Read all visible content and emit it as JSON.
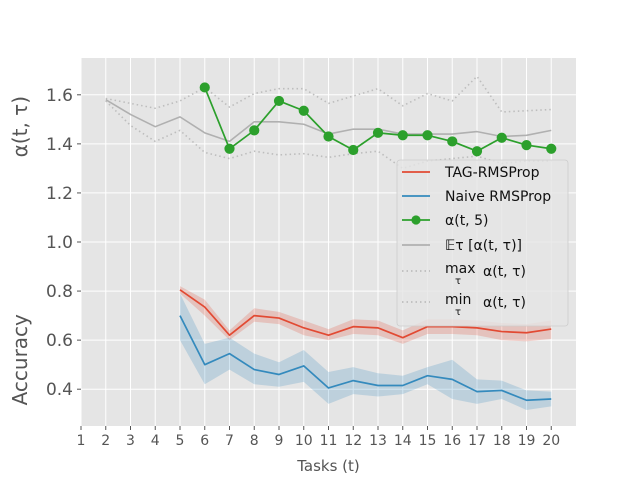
{
  "chart_data": {
    "type": "line",
    "title": "",
    "xlabel": "Tasks (t)",
    "ylabel_top": "α(t, τ)",
    "ylabel_bottom": "Accuracy",
    "xlim": [
      1,
      21
    ],
    "ylim": [
      0.25,
      1.75
    ],
    "x_ticks": [
      1,
      2,
      3,
      4,
      5,
      6,
      7,
      8,
      9,
      10,
      11,
      12,
      13,
      14,
      15,
      16,
      17,
      18,
      19,
      20
    ],
    "y_ticks": [
      0.4,
      0.6,
      0.8,
      1.0,
      1.2,
      1.4,
      1.6
    ],
    "y_tick_labels": [
      "0.4",
      "0.6",
      "0.8",
      "1.0",
      "1.2",
      "1.4",
      "1.6"
    ],
    "grid": true,
    "legend_position": "right",
    "colors": {
      "tag": "#e24a33",
      "naive": "#348abd",
      "alpha5": "#2ca02c",
      "gray": "#b0b0b0",
      "background": "#e5e5e5",
      "grid": "#ffffff"
    },
    "series": [
      {
        "key": "tag",
        "name": "TAG-RMSProp",
        "style": "solid",
        "x": [
          5,
          6,
          7,
          8,
          9,
          10,
          11,
          12,
          13,
          14,
          15,
          16,
          17,
          18,
          19,
          20
        ],
        "values": [
          0.805,
          0.735,
          0.62,
          0.7,
          0.69,
          0.65,
          0.62,
          0.655,
          0.65,
          0.61,
          0.655,
          0.655,
          0.65,
          0.635,
          0.63,
          0.645
        ],
        "band_low": [
          0.79,
          0.7,
          0.6,
          0.675,
          0.665,
          0.62,
          0.6,
          0.625,
          0.62,
          0.585,
          0.625,
          0.625,
          0.62,
          0.6,
          0.595,
          0.605
        ],
        "band_high": [
          0.82,
          0.765,
          0.64,
          0.73,
          0.715,
          0.68,
          0.645,
          0.685,
          0.68,
          0.64,
          0.685,
          0.685,
          0.68,
          0.67,
          0.665,
          0.68
        ]
      },
      {
        "key": "naive",
        "name": "Naive RMSProp",
        "style": "solid",
        "x": [
          5,
          6,
          7,
          8,
          9,
          10,
          11,
          12,
          13,
          14,
          15,
          16,
          17,
          18,
          19,
          20
        ],
        "values": [
          0.7,
          0.5,
          0.545,
          0.48,
          0.46,
          0.495,
          0.405,
          0.435,
          0.415,
          0.415,
          0.455,
          0.44,
          0.39,
          0.395,
          0.355,
          0.36
        ],
        "band_low": [
          0.6,
          0.42,
          0.48,
          0.42,
          0.41,
          0.43,
          0.34,
          0.38,
          0.37,
          0.38,
          0.42,
          0.36,
          0.34,
          0.36,
          0.315,
          0.33
        ],
        "band_high": [
          0.79,
          0.585,
          0.61,
          0.545,
          0.51,
          0.56,
          0.47,
          0.49,
          0.465,
          0.455,
          0.49,
          0.52,
          0.44,
          0.435,
          0.395,
          0.39
        ]
      },
      {
        "key": "alpha5",
        "name": "α(t, 5)",
        "style": "solid-markers",
        "x": [
          6,
          7,
          8,
          9,
          10,
          11,
          12,
          13,
          14,
          15,
          16,
          17,
          18,
          19,
          20
        ],
        "values": [
          1.63,
          1.38,
          1.455,
          1.575,
          1.535,
          1.43,
          1.375,
          1.445,
          1.435,
          1.435,
          1.41,
          1.37,
          1.425,
          1.395,
          1.38
        ]
      },
      {
        "key": "mean",
        "name": "𝔼τ  [α(t, τ)]",
        "style": "solid-gray",
        "x": [
          2,
          3,
          4,
          5,
          6,
          7,
          8,
          9,
          10,
          11,
          12,
          13,
          14,
          15,
          16,
          17,
          18,
          19,
          20
        ],
        "values": [
          1.58,
          1.52,
          1.47,
          1.51,
          1.445,
          1.41,
          1.49,
          1.49,
          1.48,
          1.44,
          1.46,
          1.46,
          1.44,
          1.44,
          1.44,
          1.45,
          1.43,
          1.435,
          1.455
        ]
      },
      {
        "key": "max",
        "name": "max α(t, τ)",
        "style": "dotted-gray",
        "x": [
          2,
          3,
          4,
          5,
          6,
          7,
          8,
          9,
          10,
          11,
          12,
          13,
          14,
          15,
          16,
          17,
          18,
          19,
          20
        ],
        "values": [
          1.585,
          1.565,
          1.545,
          1.575,
          1.63,
          1.55,
          1.605,
          1.625,
          1.625,
          1.565,
          1.595,
          1.625,
          1.555,
          1.605,
          1.575,
          1.675,
          1.53,
          1.535,
          1.54
        ]
      },
      {
        "key": "min",
        "name": "min α(t, τ)",
        "style": "dotted-gray",
        "x": [
          2,
          3,
          4,
          5,
          6,
          7,
          8,
          9,
          10,
          11,
          12,
          13,
          14,
          15,
          16,
          17,
          18,
          19,
          20
        ],
        "values": [
          1.575,
          1.475,
          1.41,
          1.455,
          1.365,
          1.34,
          1.37,
          1.355,
          1.36,
          1.345,
          1.36,
          1.37,
          1.3,
          1.33,
          1.34,
          1.35,
          1.32,
          1.33,
          1.33
        ]
      }
    ],
    "legend": [
      {
        "key": "tag",
        "label": "TAG-RMSProp"
      },
      {
        "key": "naive",
        "label": "Naive RMSProp"
      },
      {
        "key": "alpha5",
        "label": "α(t, 5)"
      },
      {
        "key": "mean",
        "label": "𝔼τ  [α(t, τ)]"
      },
      {
        "key": "max",
        "label_main": "max",
        "label_sub": "τ",
        "label_rest": "α(t, τ)"
      },
      {
        "key": "min",
        "label_main": "min",
        "label_sub": "τ",
        "label_rest": "α(t, τ)"
      }
    ]
  }
}
